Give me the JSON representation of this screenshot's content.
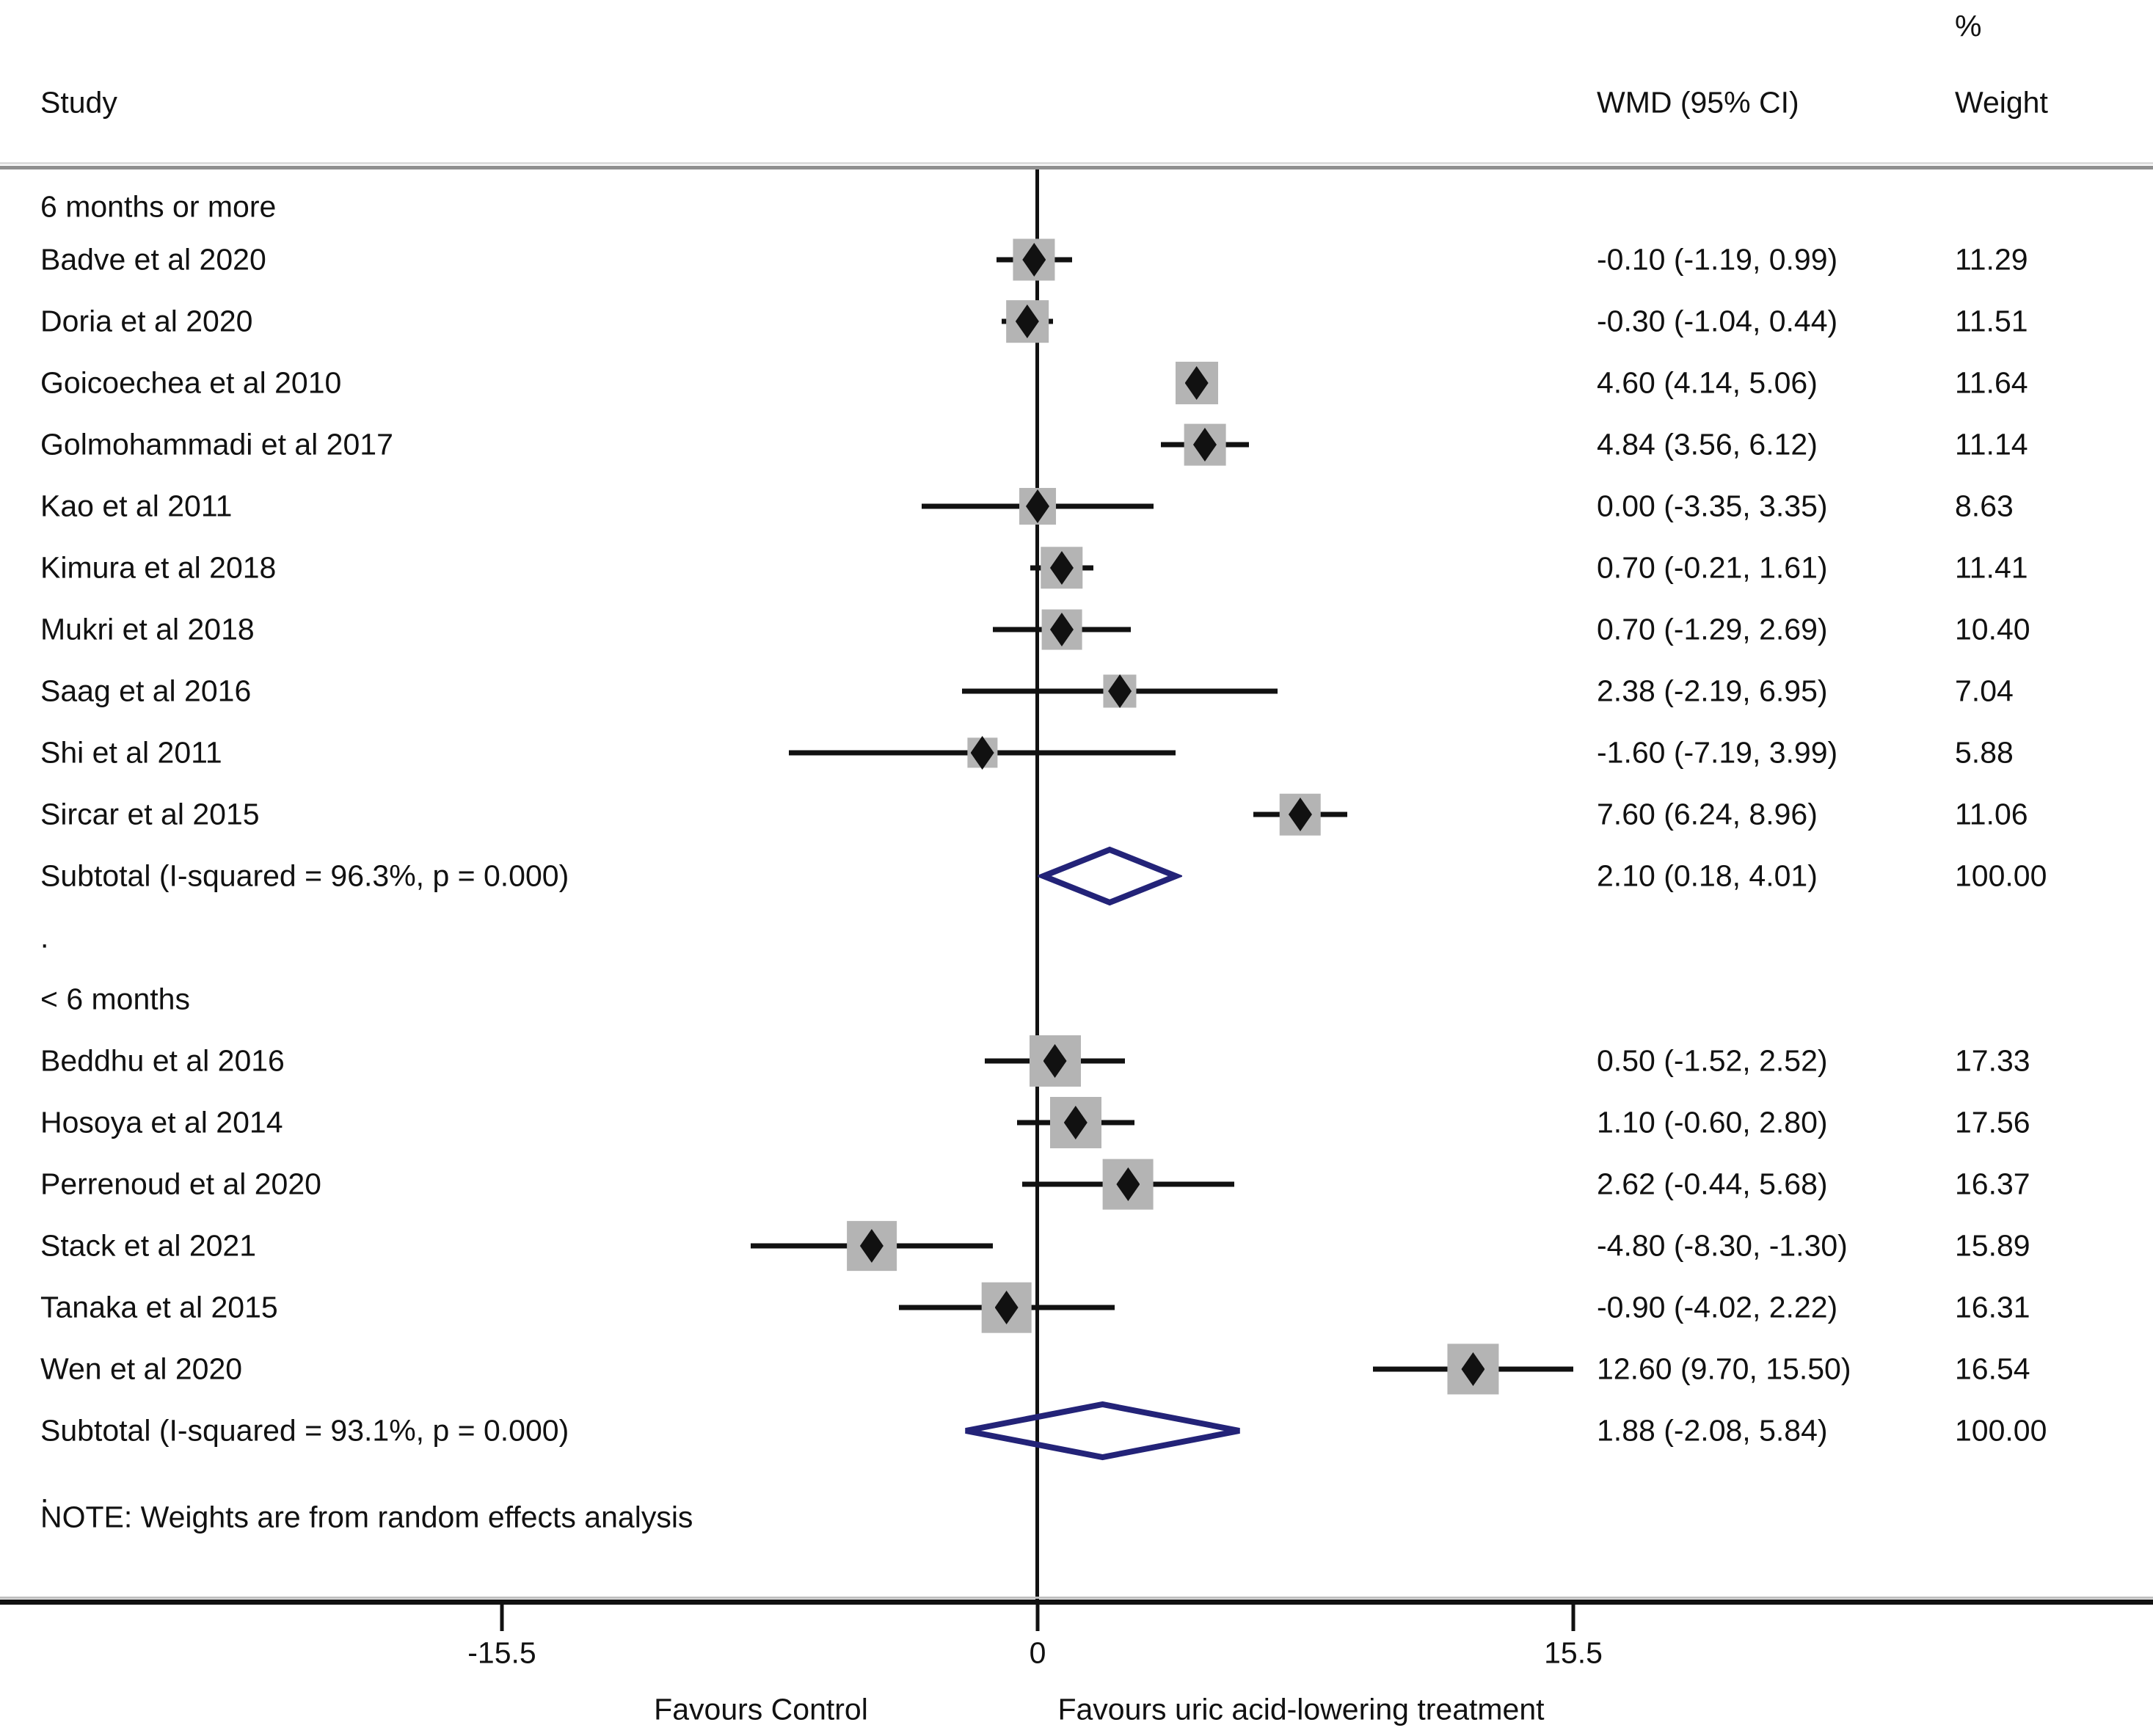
{
  "chart_data": {
    "type": "forest",
    "effect_measure": "WMD",
    "columns": {
      "study": "Study",
      "effect": "WMD (95% CI)",
      "percent_symbol": "%",
      "weight": "Weight"
    },
    "x_ticks": [
      {
        "label": "-15.5",
        "value": -15.5
      },
      {
        "label": "0",
        "value": 0
      },
      {
        "label": "15.5",
        "value": 15.5
      }
    ],
    "favours_left": "Favours Control",
    "favours_right": "Favours uric acid-lowering treatment",
    "note": "NOTE: Weights are from random effects analysis",
    "separator_dot": ".",
    "groups": [
      {
        "name": "6 months or more",
        "studies": [
          {
            "label": "Badve et al 2020",
            "est": -0.1,
            "lo": -1.19,
            "hi": 0.99,
            "weight": 11.29,
            "effect_text": "-0.10 (-1.19, 0.99)",
            "weight_text": "11.29"
          },
          {
            "label": "Doria et al 2020",
            "est": -0.3,
            "lo": -1.04,
            "hi": 0.44,
            "weight": 11.51,
            "effect_text": "-0.30 (-1.04, 0.44)",
            "weight_text": "11.51"
          },
          {
            "label": "Goicoechea et al 2010",
            "est": 4.6,
            "lo": 4.14,
            "hi": 5.06,
            "weight": 11.64,
            "effect_text": "4.60 (4.14, 5.06)",
            "weight_text": "11.64"
          },
          {
            "label": "Golmohammadi et al 2017",
            "est": 4.84,
            "lo": 3.56,
            "hi": 6.12,
            "weight": 11.14,
            "effect_text": "4.84 (3.56, 6.12)",
            "weight_text": "11.14"
          },
          {
            "label": "Kao et al 2011",
            "est": 0.0,
            "lo": -3.35,
            "hi": 3.35,
            "weight": 8.63,
            "effect_text": "0.00 (-3.35, 3.35)",
            "weight_text": "8.63"
          },
          {
            "label": "Kimura et al 2018",
            "est": 0.7,
            "lo": -0.21,
            "hi": 1.61,
            "weight": 11.41,
            "effect_text": "0.70 (-0.21, 1.61)",
            "weight_text": "11.41"
          },
          {
            "label": "Mukri et al 2018",
            "est": 0.7,
            "lo": -1.29,
            "hi": 2.69,
            "weight": 10.4,
            "effect_text": "0.70 (-1.29, 2.69)",
            "weight_text": "10.40"
          },
          {
            "label": "Saag et al 2016",
            "est": 2.38,
            "lo": -2.19,
            "hi": 6.95,
            "weight": 7.04,
            "effect_text": "2.38 (-2.19, 6.95)",
            "weight_text": "7.04"
          },
          {
            "label": "Shi et al 2011",
            "est": -1.6,
            "lo": -7.19,
            "hi": 3.99,
            "weight": 5.88,
            "effect_text": "-1.60 (-7.19, 3.99)",
            "weight_text": "5.88"
          },
          {
            "label": "Sircar et al 2015",
            "est": 7.6,
            "lo": 6.24,
            "hi": 8.96,
            "weight": 11.06,
            "effect_text": "7.60 (6.24, 8.96)",
            "weight_text": "11.06"
          }
        ],
        "subtotal": {
          "label": "Subtotal  (I-squared = 96.3%, p = 0.000)",
          "est": 2.1,
          "lo": 0.18,
          "hi": 4.01,
          "effect_text": "2.10 (0.18, 4.01)",
          "weight_text": "100.00"
        }
      },
      {
        "name": "< 6 months",
        "studies": [
          {
            "label": "Beddhu et al 2016",
            "est": 0.5,
            "lo": -1.52,
            "hi": 2.52,
            "weight": 17.33,
            "effect_text": "0.50 (-1.52, 2.52)",
            "weight_text": "17.33"
          },
          {
            "label": "Hosoya et al 2014",
            "est": 1.1,
            "lo": -0.6,
            "hi": 2.8,
            "weight": 17.56,
            "effect_text": "1.10 (-0.60, 2.80)",
            "weight_text": "17.56"
          },
          {
            "label": "Perrenoud et al 2020",
            "est": 2.62,
            "lo": -0.44,
            "hi": 5.68,
            "weight": 16.37,
            "effect_text": "2.62 (-0.44, 5.68)",
            "weight_text": "16.37"
          },
          {
            "label": "Stack et al 2021",
            "est": -4.8,
            "lo": -8.3,
            "hi": -1.3,
            "weight": 15.89,
            "effect_text": "-4.80 (-8.30, -1.30)",
            "weight_text": "15.89"
          },
          {
            "label": "Tanaka et al 2015",
            "est": -0.9,
            "lo": -4.02,
            "hi": 2.22,
            "weight": 16.31,
            "effect_text": "-0.90 (-4.02, 2.22)",
            "weight_text": "16.31"
          },
          {
            "label": "Wen et al 2020",
            "est": 12.6,
            "lo": 9.7,
            "hi": 15.5,
            "weight": 16.54,
            "effect_text": "12.60 (9.70, 15.50)",
            "weight_text": "16.54"
          }
        ],
        "subtotal": {
          "label": "Subtotal  (I-squared = 93.1%, p = 0.000)",
          "est": 1.88,
          "lo": -2.08,
          "hi": 5.84,
          "effect_text": "1.88 (-2.08, 5.84)",
          "weight_text": "100.00"
        }
      }
    ]
  },
  "colors": {
    "line": "#111111",
    "box": "#b4b4b4",
    "diamond": "#232378",
    "text": "#111111",
    "rule": "#8f8f8f"
  }
}
